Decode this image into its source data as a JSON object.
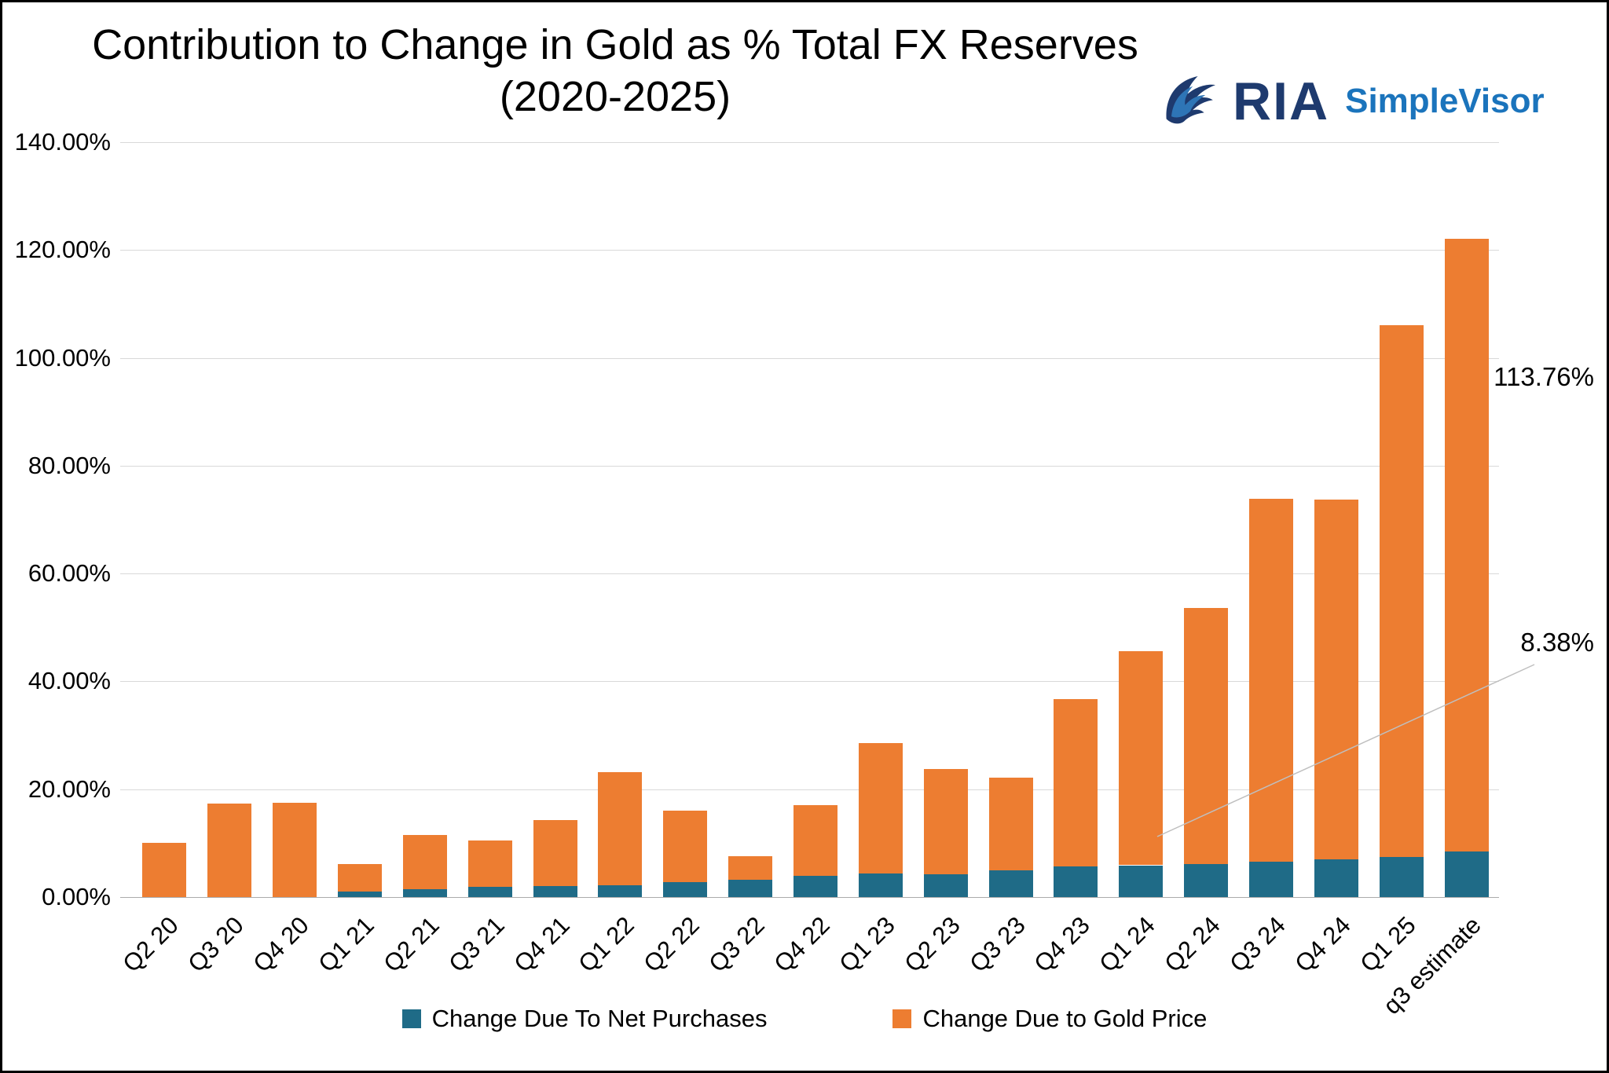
{
  "title": {
    "line1": "Contribution to Change in Gold as % Total FX Reserves",
    "line2": "(2020-2025)"
  },
  "logo": {
    "ria": "RIA",
    "simplevisor": "SimpleVisor",
    "ria_color": "#1E3A6E",
    "simplevisor_color": "#1B74BC"
  },
  "chart_data": {
    "type": "bar",
    "stacked": true,
    "title": "Contribution to Change in Gold as % Total FX Reserves (2020-2025)",
    "xlabel": "",
    "ylabel": "",
    "ylim": [
      0,
      140
    ],
    "ytick_step": 20,
    "ytick_labels": [
      "0.00%",
      "20.00%",
      "40.00%",
      "60.00%",
      "80.00%",
      "100.00%",
      "120.00%",
      "140.00%"
    ],
    "grid": true,
    "legend_position": "bottom",
    "categories": [
      "Q2 20",
      "Q3 20",
      "Q4 20",
      "Q1 21",
      "Q2 21",
      "Q3 21",
      "Q4 21",
      "Q1 22",
      "Q2 22",
      "Q3 22",
      "Q4 22",
      "Q1 23",
      "Q2 23",
      "Q3 23",
      "Q4 23",
      "Q1 24",
      "Q2 24",
      "Q3 24",
      "Q4 24",
      "Q1 25",
      "q3 estimate"
    ],
    "series": [
      {
        "name": "Change Due To Net Purchases",
        "color": "#1F6B87",
        "values": [
          0,
          0,
          0,
          1.0,
          1.5,
          1.9,
          2.0,
          2.2,
          2.8,
          3.2,
          3.9,
          4.4,
          4.2,
          5.0,
          5.7,
          5.9,
          6.1,
          6.5,
          7.0,
          7.4,
          8.38
        ]
      },
      {
        "name": "Change Due to Gold Price",
        "color": "#ED7D31",
        "values": [
          10.0,
          17.3,
          17.5,
          5.1,
          10.0,
          8.6,
          12.3,
          21.0,
          13.2,
          4.4,
          13.1,
          24.2,
          19.5,
          17.1,
          31.0,
          39.7,
          47.5,
          67.4,
          66.7,
          98.7,
          113.76
        ]
      }
    ],
    "annotations": [
      {
        "text": "113.76%",
        "series": "Change Due to Gold Price",
        "category": "q3 estimate"
      },
      {
        "text": "8.38%",
        "series": "Change Due To Net Purchases",
        "category": "q3 estimate"
      }
    ]
  }
}
